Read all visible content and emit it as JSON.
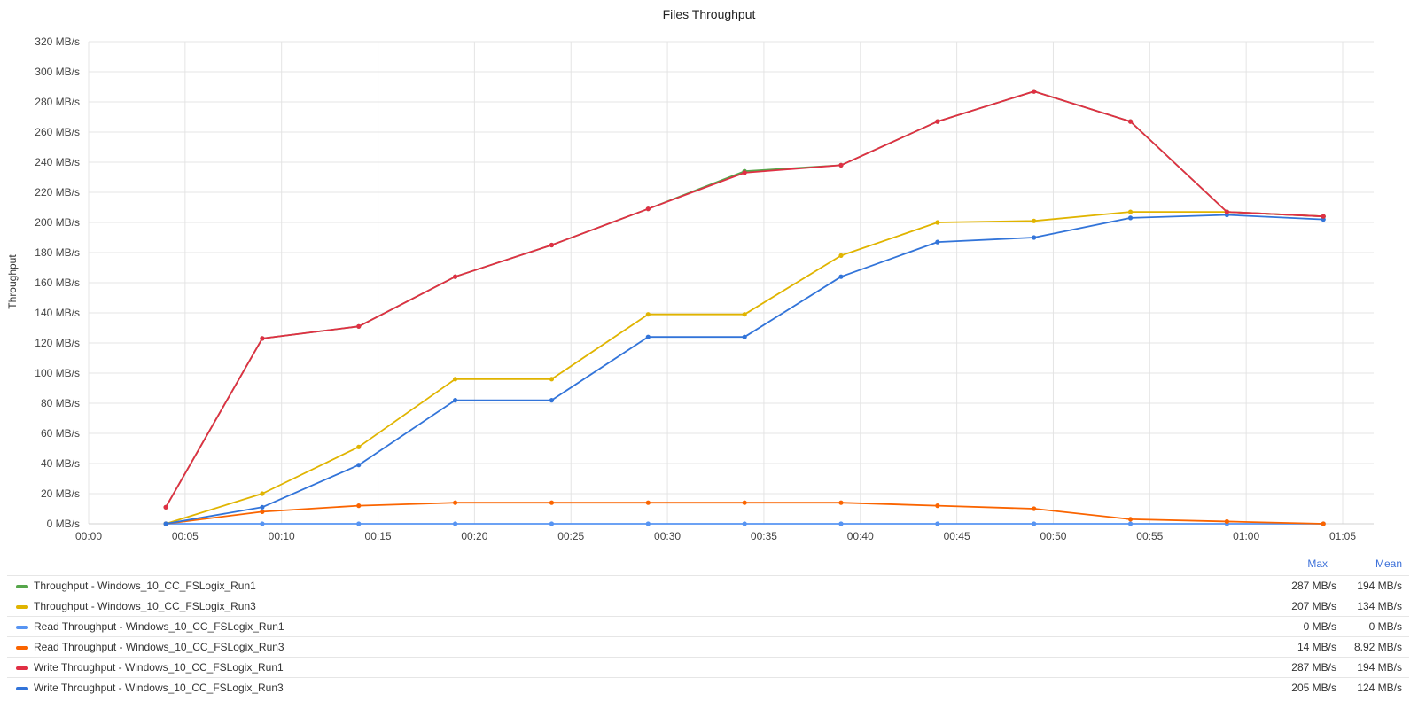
{
  "chart_data": {
    "type": "line",
    "title": "Files Throughput",
    "ylabel": "Throughput",
    "xlabel": "",
    "y_unit": "MB/s",
    "ylim": [
      0,
      320
    ],
    "y_ticks": [
      "0 MB/s",
      "20 MB/s",
      "40 MB/s",
      "60 MB/s",
      "80 MB/s",
      "100 MB/s",
      "120 MB/s",
      "140 MB/s",
      "160 MB/s",
      "180 MB/s",
      "200 MB/s",
      "220 MB/s",
      "240 MB/s",
      "260 MB/s",
      "280 MB/s",
      "300 MB/s",
      "320 MB/s"
    ],
    "x_ticks": [
      "00:00",
      "00:05",
      "00:10",
      "00:15",
      "00:20",
      "00:25",
      "00:30",
      "00:35",
      "00:40",
      "00:45",
      "00:50",
      "00:55",
      "01:00",
      "01:05"
    ],
    "x_range": [
      "00:00",
      "01:05"
    ],
    "x": [
      "00:04",
      "00:09",
      "00:14",
      "00:19",
      "00:24",
      "00:29",
      "00:34",
      "00:39",
      "00:44",
      "00:49",
      "00:54",
      "00:59",
      "01:04"
    ],
    "grid": true,
    "legend_position": "bottom",
    "series": [
      {
        "name": "Throughput - Windows_10_CC_FSLogix_Run1",
        "color": "#56a64b",
        "values": [
          11,
          123,
          131,
          164,
          185,
          209,
          234,
          238,
          267,
          287,
          267,
          207,
          204
        ],
        "max": "287 MB/s",
        "mean": "194 MB/s"
      },
      {
        "name": "Throughput - Windows_10_CC_FSLogix_Run3",
        "color": "#e0b400",
        "values": [
          0,
          20,
          51,
          96,
          96,
          139,
          139,
          178,
          200,
          201,
          207,
          207,
          204
        ],
        "max": "207 MB/s",
        "mean": "134 MB/s"
      },
      {
        "name": "Read Throughput - Windows_10_CC_FSLogix_Run1",
        "color": "#5794f2",
        "values": [
          0,
          0,
          0,
          0,
          0,
          0,
          0,
          0,
          0,
          0,
          0,
          0,
          0
        ],
        "max": "0 MB/s",
        "mean": "0 MB/s"
      },
      {
        "name": "Read Throughput - Windows_10_CC_FSLogix_Run3",
        "color": "#fa6400",
        "values": [
          0,
          8,
          12,
          14,
          14,
          14,
          14,
          14,
          12,
          10,
          3,
          1.5,
          0
        ],
        "max": "14 MB/s",
        "mean": "8.92 MB/s"
      },
      {
        "name": "Write Throughput - Windows_10_CC_FSLogix_Run1",
        "color": "#e02f44",
        "values": [
          11,
          123,
          131,
          164,
          185,
          209,
          233,
          238,
          267,
          287,
          267,
          207,
          204
        ],
        "max": "287 MB/s",
        "mean": "194 MB/s"
      },
      {
        "name": "Write Throughput - Windows_10_CC_FSLogix_Run3",
        "color": "#3274d9",
        "values": [
          0,
          11,
          39,
          82,
          82,
          124,
          124,
          164,
          187,
          190,
          203,
          205,
          202
        ],
        "max": "205 MB/s",
        "mean": "124 MB/s"
      }
    ],
    "draw_order": [
      2,
      3,
      1,
      5,
      0,
      4
    ]
  },
  "legend": {
    "max_header": "Max",
    "mean_header": "Mean"
  }
}
